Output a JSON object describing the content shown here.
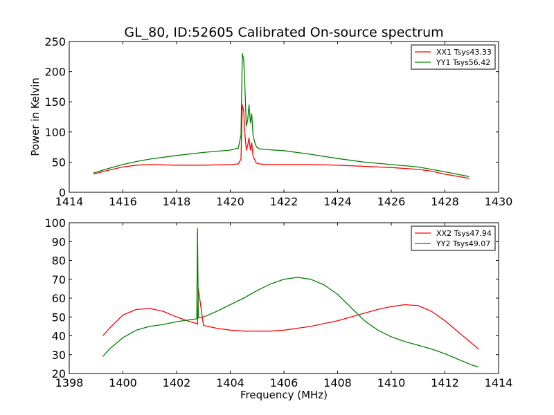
{
  "chart_data": [
    {
      "type": "line",
      "title": "GL_80, ID:52605 Calibrated On-source spectrum",
      "xlabel": "",
      "ylabel": "Power in Kelvin",
      "xlim": [
        1414,
        1430
      ],
      "ylim": [
        0,
        250
      ],
      "xticks": [
        1414,
        1416,
        1418,
        1420,
        1422,
        1424,
        1426,
        1428,
        1430
      ],
      "yticks": [
        0,
        50,
        100,
        150,
        200,
        250
      ],
      "legend_position": "top-right",
      "grid": false,
      "series": [
        {
          "name": "XX1 Tsys43.33",
          "color": "#ff0000",
          "x": [
            1414.9,
            1415.5,
            1416.0,
            1416.5,
            1417.0,
            1418.0,
            1419.0,
            1420.0,
            1420.3,
            1420.4,
            1420.45,
            1420.5,
            1420.55,
            1420.6,
            1420.65,
            1420.7,
            1420.75,
            1420.8,
            1420.85,
            1420.9,
            1420.95,
            1421.0,
            1421.1,
            1421.3,
            1422.0,
            1423.0,
            1424.0,
            1425.0,
            1426.0,
            1427.0,
            1427.5,
            1428.0,
            1428.9
          ],
          "y": [
            30,
            37,
            42,
            45,
            46,
            45,
            45,
            46,
            47,
            55,
            145,
            135,
            95,
            70,
            78,
            90,
            70,
            82,
            60,
            55,
            50,
            48,
            47,
            46,
            46,
            46,
            45,
            43,
            41,
            38,
            35,
            30,
            23
          ]
        },
        {
          "name": "YY1 Tsys56.42",
          "color": "#008000",
          "x": [
            1414.9,
            1415.5,
            1416.0,
            1416.5,
            1417.0,
            1418.0,
            1419.0,
            1420.0,
            1420.3,
            1420.4,
            1420.45,
            1420.5,
            1420.55,
            1420.6,
            1420.65,
            1420.7,
            1420.75,
            1420.8,
            1420.85,
            1420.9,
            1420.95,
            1421.0,
            1421.1,
            1421.3,
            1422.0,
            1423.0,
            1424.0,
            1425.0,
            1426.0,
            1427.0,
            1427.5,
            1428.0,
            1428.9
          ],
          "y": [
            32,
            40,
            46,
            51,
            55,
            61,
            66,
            70,
            73,
            95,
            230,
            220,
            170,
            110,
            120,
            145,
            115,
            130,
            95,
            85,
            78,
            74,
            72,
            71,
            69,
            63,
            56,
            50,
            46,
            42,
            38,
            34,
            26
          ]
        }
      ]
    },
    {
      "type": "line",
      "title": "",
      "xlabel": "Frequency (MHz)",
      "ylabel": "",
      "xlim": [
        1398,
        1414
      ],
      "ylim": [
        20,
        100
      ],
      "xticks": [
        1398,
        1400,
        1402,
        1404,
        1406,
        1408,
        1410,
        1412,
        1414
      ],
      "yticks": [
        20,
        30,
        40,
        50,
        60,
        70,
        80,
        90,
        100
      ],
      "legend_position": "top-right",
      "grid": false,
      "series": [
        {
          "name": "XX2 Tsys47.94",
          "color": "#ff0000",
          "x": [
            1399.25,
            1399.5,
            1400.0,
            1400.5,
            1401.0,
            1401.5,
            1402.0,
            1402.5,
            1402.75,
            1402.78,
            1402.81,
            1403.0,
            1403.5,
            1404.0,
            1404.5,
            1405.0,
            1405.5,
            1406.0,
            1406.5,
            1407.0,
            1407.5,
            1408.0,
            1408.5,
            1409.0,
            1409.5,
            1410.0,
            1410.5,
            1411.0,
            1411.5,
            1412.0,
            1412.5,
            1413.0,
            1413.25
          ],
          "y": [
            40,
            44,
            51,
            54,
            54.5,
            53,
            50,
            47.5,
            46.5,
            46,
            65,
            45.5,
            44,
            43,
            42.5,
            42.5,
            42.5,
            43,
            44,
            45,
            46.5,
            48,
            50,
            52,
            54,
            55.5,
            56.5,
            56,
            53,
            48,
            42,
            36,
            33
          ]
        },
        {
          "name": "YY2 Tsys49.07",
          "color": "#008000",
          "x": [
            1399.25,
            1399.5,
            1400.0,
            1400.5,
            1401.0,
            1401.5,
            1402.0,
            1402.5,
            1402.75,
            1402.78,
            1402.81,
            1403.0,
            1403.5,
            1404.0,
            1404.5,
            1405.0,
            1405.5,
            1406.0,
            1406.5,
            1407.0,
            1407.5,
            1408.0,
            1408.5,
            1409.0,
            1409.5,
            1410.0,
            1410.5,
            1411.0,
            1411.5,
            1412.0,
            1412.5,
            1413.0,
            1413.25
          ],
          "y": [
            29,
            33,
            39,
            43,
            45,
            46,
            47.5,
            48.5,
            49,
            97,
            49.5,
            50,
            53,
            56.5,
            60,
            64,
            67.5,
            70,
            71,
            70,
            67,
            62,
            55,
            48,
            43,
            39.5,
            37,
            35,
            33,
            30.5,
            27.5,
            24.5,
            23.5
          ]
        }
      ]
    }
  ]
}
